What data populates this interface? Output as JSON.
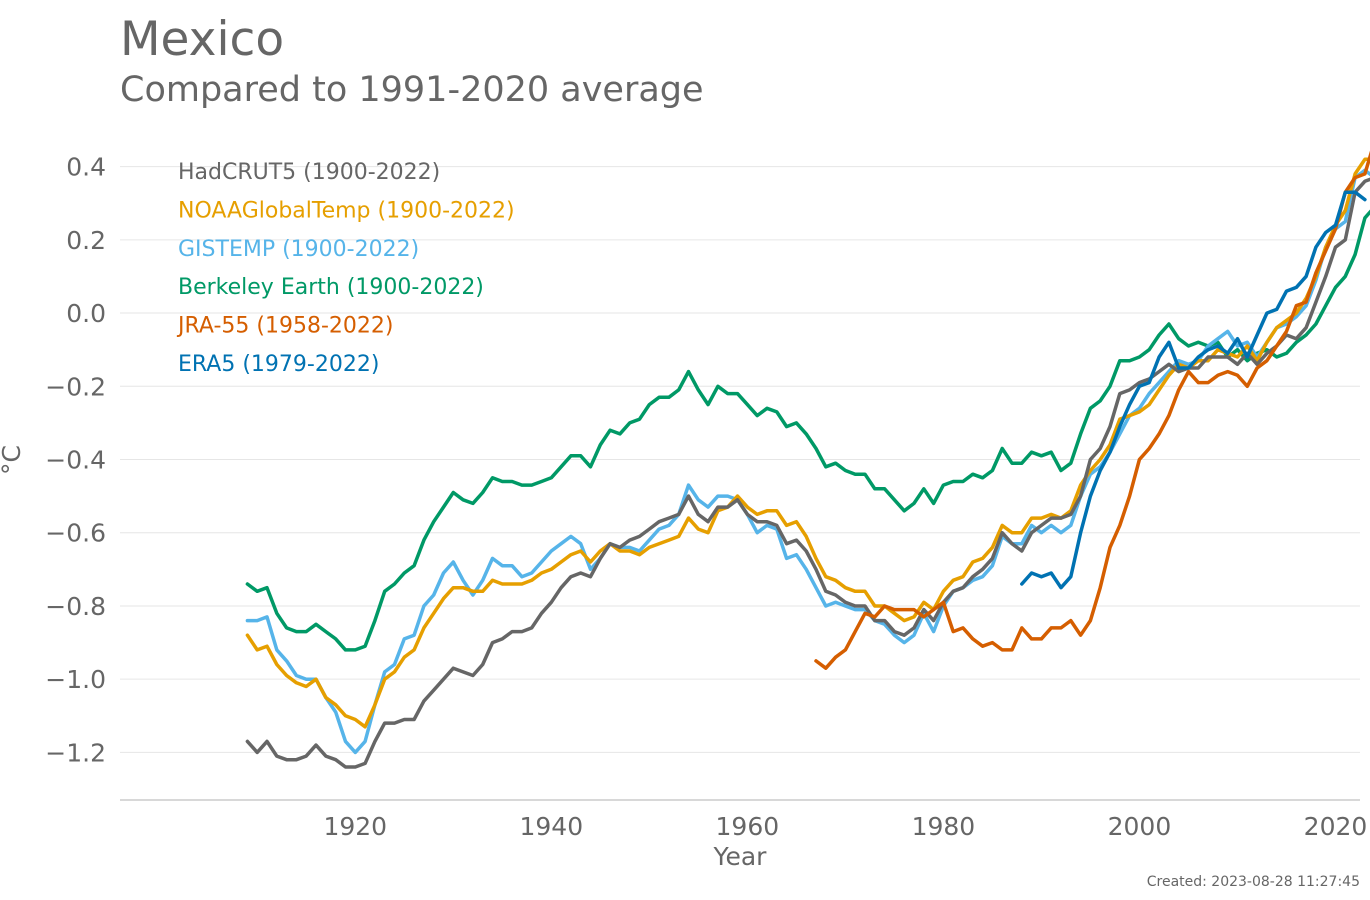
{
  "title": "Mexico",
  "subtitle": "Compared to 1991-2020 average",
  "created": "Created: 2023-08-28 11:27:45",
  "chart_data": {
    "type": "line",
    "title": "Mexico",
    "subtitle": "Compared to 1991-2020 average",
    "xlabel": "Year",
    "ylabel": "°C",
    "xlim": [
      1896,
      2022.5
    ],
    "ylim": [
      -1.33,
      0.5
    ],
    "xticks": [
      1920,
      1940,
      1960,
      1980,
      2000,
      2020
    ],
    "xtick_labels": [
      "1920",
      "1940",
      "1960",
      "1980",
      "2000",
      "2020"
    ],
    "yticks": [
      -1.2,
      -1.0,
      -0.8,
      -0.6,
      -0.4,
      -0.2,
      0.0,
      0.2,
      0.4
    ],
    "ytick_labels": [
      "−1.2",
      "−1.0",
      "−0.8",
      "−0.6",
      "−0.4",
      "−0.2",
      "0.0",
      "0.2",
      "0.4"
    ],
    "grid": "horizontal",
    "legend_position": "top-left",
    "series": [
      {
        "name": "Berkeley Earth (1900-2022)",
        "color": "#009966",
        "x_start": 1909,
        "values": [
          -0.74,
          -0.76,
          -0.75,
          -0.82,
          -0.86,
          -0.87,
          -0.87,
          -0.85,
          -0.87,
          -0.89,
          -0.92,
          -0.92,
          -0.91,
          -0.84,
          -0.76,
          -0.74,
          -0.71,
          -0.69,
          -0.62,
          -0.57,
          -0.53,
          -0.49,
          -0.51,
          -0.52,
          -0.49,
          -0.45,
          -0.46,
          -0.46,
          -0.47,
          -0.47,
          -0.46,
          -0.45,
          -0.42,
          -0.39,
          -0.39,
          -0.42,
          -0.36,
          -0.32,
          -0.33,
          -0.3,
          -0.29,
          -0.25,
          -0.23,
          -0.23,
          -0.21,
          -0.16,
          -0.21,
          -0.25,
          -0.2,
          -0.22,
          -0.22,
          -0.25,
          -0.28,
          -0.26,
          -0.27,
          -0.31,
          -0.3,
          -0.33,
          -0.37,
          -0.42,
          -0.41,
          -0.43,
          -0.44,
          -0.44,
          -0.48,
          -0.48,
          -0.51,
          -0.54,
          -0.52,
          -0.48,
          -0.52,
          -0.47,
          -0.46,
          -0.46,
          -0.44,
          -0.45,
          -0.43,
          -0.37,
          -0.41,
          -0.41,
          -0.38,
          -0.39,
          -0.38,
          -0.43,
          -0.41,
          -0.33,
          -0.26,
          -0.24,
          -0.2,
          -0.13,
          -0.13,
          -0.12,
          -0.1,
          -0.06,
          -0.03,
          -0.07,
          -0.09,
          -0.08,
          -0.09,
          -0.08,
          -0.12,
          -0.1,
          -0.13,
          -0.11,
          -0.1,
          -0.12,
          -0.11,
          -0.08,
          -0.06,
          -0.03,
          0.02,
          0.07,
          0.1,
          0.16,
          0.26,
          0.29,
          0.29
        ]
      },
      {
        "name": "GISTEMP (1900-2022)",
        "color": "#56B4E9",
        "x_start": 1909,
        "values": [
          -0.84,
          -0.84,
          -0.83,
          -0.92,
          -0.95,
          -0.99,
          -1.0,
          -1.0,
          -1.05,
          -1.09,
          -1.17,
          -1.2,
          -1.17,
          -1.07,
          -0.98,
          -0.96,
          -0.89,
          -0.88,
          -0.8,
          -0.77,
          -0.71,
          -0.68,
          -0.73,
          -0.77,
          -0.73,
          -0.67,
          -0.69,
          -0.69,
          -0.72,
          -0.71,
          -0.68,
          -0.65,
          -0.63,
          -0.61,
          -0.63,
          -0.7,
          -0.67,
          -0.63,
          -0.64,
          -0.64,
          -0.65,
          -0.62,
          -0.59,
          -0.58,
          -0.55,
          -0.47,
          -0.51,
          -0.53,
          -0.5,
          -0.5,
          -0.51,
          -0.55,
          -0.6,
          -0.58,
          -0.59,
          -0.67,
          -0.66,
          -0.7,
          -0.75,
          -0.8,
          -0.79,
          -0.8,
          -0.81,
          -0.81,
          -0.84,
          -0.85,
          -0.88,
          -0.9,
          -0.88,
          -0.82,
          -0.87,
          -0.8,
          -0.76,
          -0.75,
          -0.73,
          -0.72,
          -0.69,
          -0.61,
          -0.63,
          -0.63,
          -0.58,
          -0.6,
          -0.58,
          -0.6,
          -0.58,
          -0.5,
          -0.44,
          -0.42,
          -0.38,
          -0.33,
          -0.28,
          -0.26,
          -0.22,
          -0.19,
          -0.16,
          -0.13,
          -0.14,
          -0.13,
          -0.09,
          -0.07,
          -0.05,
          -0.09,
          -0.08,
          -0.12,
          -0.08,
          -0.04,
          -0.03,
          -0.01,
          0.02,
          0.09,
          0.18,
          0.23,
          0.25,
          0.37,
          0.39,
          0.37
        ]
      },
      {
        "name": "NOAAGlobalTemp (1900-2022)",
        "color": "#E69F00",
        "x_start": 1909,
        "values": [
          -0.88,
          -0.92,
          -0.91,
          -0.96,
          -0.99,
          -1.01,
          -1.02,
          -1.0,
          -1.05,
          -1.07,
          -1.1,
          -1.11,
          -1.13,
          -1.07,
          -1.0,
          -0.98,
          -0.94,
          -0.92,
          -0.86,
          -0.82,
          -0.78,
          -0.75,
          -0.75,
          -0.76,
          -0.76,
          -0.73,
          -0.74,
          -0.74,
          -0.74,
          -0.73,
          -0.71,
          -0.7,
          -0.68,
          -0.66,
          -0.65,
          -0.68,
          -0.65,
          -0.63,
          -0.65,
          -0.65,
          -0.66,
          -0.64,
          -0.63,
          -0.62,
          -0.61,
          -0.56,
          -0.59,
          -0.6,
          -0.54,
          -0.53,
          -0.5,
          -0.53,
          -0.55,
          -0.54,
          -0.54,
          -0.58,
          -0.57,
          -0.61,
          -0.67,
          -0.72,
          -0.73,
          -0.75,
          -0.76,
          -0.76,
          -0.8,
          -0.8,
          -0.82,
          -0.84,
          -0.83,
          -0.79,
          -0.81,
          -0.76,
          -0.73,
          -0.72,
          -0.68,
          -0.67,
          -0.64,
          -0.58,
          -0.6,
          -0.6,
          -0.56,
          -0.56,
          -0.55,
          -0.56,
          -0.54,
          -0.47,
          -0.43,
          -0.4,
          -0.36,
          -0.29,
          -0.28,
          -0.27,
          -0.25,
          -0.21,
          -0.17,
          -0.14,
          -0.15,
          -0.13,
          -0.13,
          -0.1,
          -0.11,
          -0.12,
          -0.09,
          -0.13,
          -0.08,
          -0.04,
          -0.02,
          0.0,
          0.04,
          0.1,
          0.18,
          0.24,
          0.28,
          0.38,
          0.42,
          0.42
        ]
      },
      {
        "name": "HadCRUT5 (1900-2022)",
        "color": "#666666",
        "x_start": 1909,
        "values": [
          -1.17,
          -1.2,
          -1.17,
          -1.21,
          -1.22,
          -1.22,
          -1.21,
          -1.18,
          -1.21,
          -1.22,
          -1.24,
          -1.24,
          -1.23,
          -1.17,
          -1.12,
          -1.12,
          -1.11,
          -1.11,
          -1.06,
          -1.03,
          -1.0,
          -0.97,
          -0.98,
          -0.99,
          -0.96,
          -0.9,
          -0.89,
          -0.87,
          -0.87,
          -0.86,
          -0.82,
          -0.79,
          -0.75,
          -0.72,
          -0.71,
          -0.72,
          -0.67,
          -0.63,
          -0.64,
          -0.62,
          -0.61,
          -0.59,
          -0.57,
          -0.56,
          -0.55,
          -0.5,
          -0.55,
          -0.57,
          -0.53,
          -0.53,
          -0.51,
          -0.55,
          -0.57,
          -0.57,
          -0.58,
          -0.63,
          -0.62,
          -0.65,
          -0.7,
          -0.76,
          -0.77,
          -0.79,
          -0.8,
          -0.8,
          -0.84,
          -0.84,
          -0.87,
          -0.88,
          -0.86,
          -0.81,
          -0.84,
          -0.79,
          -0.76,
          -0.75,
          -0.72,
          -0.7,
          -0.67,
          -0.6,
          -0.63,
          -0.65,
          -0.6,
          -0.58,
          -0.56,
          -0.56,
          -0.55,
          -0.5,
          -0.4,
          -0.37,
          -0.31,
          -0.22,
          -0.21,
          -0.19,
          -0.18,
          -0.16,
          -0.14,
          -0.16,
          -0.15,
          -0.15,
          -0.12,
          -0.12,
          -0.12,
          -0.14,
          -0.11,
          -0.14,
          -0.11,
          -0.09,
          -0.06,
          -0.07,
          -0.04,
          0.03,
          0.1,
          0.18,
          0.2,
          0.33,
          0.36,
          0.37
        ]
      },
      {
        "name": "JRA-55 (1958-2022)",
        "color": "#D55E00",
        "x_start": 1967,
        "values": [
          -0.95,
          -0.97,
          -0.94,
          -0.92,
          -0.87,
          -0.82,
          -0.83,
          -0.8,
          -0.81,
          -0.81,
          -0.81,
          -0.83,
          -0.81,
          -0.79,
          -0.87,
          -0.86,
          -0.89,
          -0.91,
          -0.9,
          -0.92,
          -0.92,
          -0.86,
          -0.89,
          -0.89,
          -0.86,
          -0.86,
          -0.84,
          -0.88,
          -0.84,
          -0.75,
          -0.64,
          -0.58,
          -0.5,
          -0.4,
          -0.37,
          -0.33,
          -0.28,
          -0.21,
          -0.16,
          -0.19,
          -0.19,
          -0.17,
          -0.16,
          -0.17,
          -0.2,
          -0.15,
          -0.13,
          -0.09,
          -0.05,
          0.02,
          0.03,
          0.11,
          0.17,
          0.23,
          0.33,
          0.37,
          0.38,
          0.47,
          0.46,
          0.42
        ]
      },
      {
        "name": "ERA5 (1979-2022)",
        "color": "#0072B2",
        "x_start": 1988,
        "values": [
          -0.74,
          -0.71,
          -0.72,
          -0.71,
          -0.75,
          -0.72,
          -0.6,
          -0.5,
          -0.43,
          -0.38,
          -0.31,
          -0.25,
          -0.2,
          -0.19,
          -0.12,
          -0.08,
          -0.15,
          -0.15,
          -0.12,
          -0.1,
          -0.09,
          -0.11,
          -0.07,
          -0.12,
          -0.06,
          0.0,
          0.01,
          0.06,
          0.07,
          0.1,
          0.18,
          0.22,
          0.24,
          0.33,
          0.33,
          0.31
        ]
      }
    ],
    "legend": [
      {
        "label": "HadCRUT5 (1900-2022)",
        "color": "#666666"
      },
      {
        "label": "NOAAGlobalTemp (1900-2022)",
        "color": "#E69F00"
      },
      {
        "label": "GISTEMP (1900-2022)",
        "color": "#56B4E9"
      },
      {
        "label": "Berkeley Earth (1900-2022)",
        "color": "#009966"
      },
      {
        "label": "JRA-55 (1958-2022)",
        "color": "#D55E00"
      },
      {
        "label": "ERA5 (1979-2022)",
        "color": "#0072B2"
      }
    ]
  }
}
